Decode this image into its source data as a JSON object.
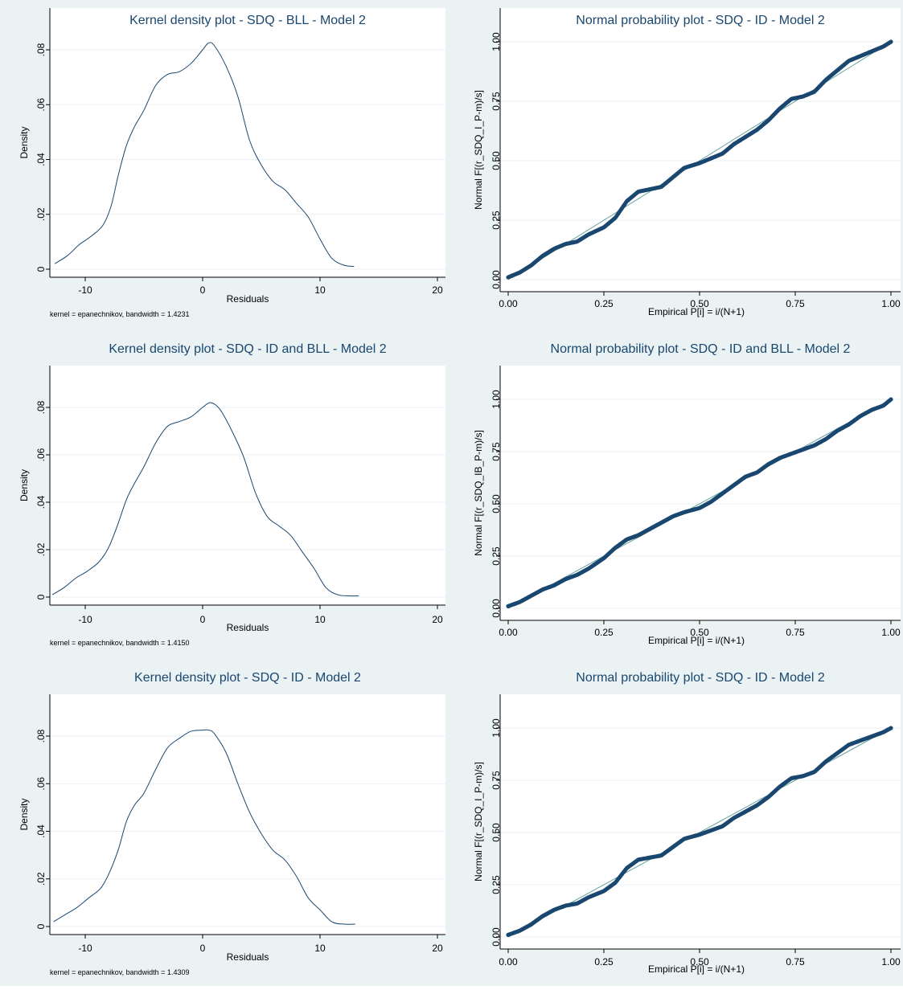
{
  "colors": {
    "background": "#eaf2f3",
    "plot_area": "#ffffff",
    "series": "#1a476f",
    "reference_line": "#66a0a0"
  },
  "chart_data": [
    {
      "type": "line",
      "subtype": "kernel-density",
      "title": "Kernel density plot - SDQ - BLL - Model 2",
      "xlabel": "Residuals",
      "ylabel": "Density",
      "note": "kernel = epanechnikov, bandwidth = 1.4231",
      "xlim": [
        -13,
        20
      ],
      "ylim": [
        0,
        0.085
      ],
      "xticks": [
        -10,
        0,
        10,
        20
      ],
      "xtick_labels": [
        "-10",
        "0",
        "10",
        "20"
      ],
      "yticks": [
        0,
        0.02,
        0.04,
        0.06,
        0.08
      ],
      "ytick_labels": [
        "0",
        ".02",
        ".04",
        ".06",
        ".08"
      ],
      "grid": true,
      "series": [
        {
          "x": [
            -12.6,
            -11.5,
            -10.5,
            -9.5,
            -8.5,
            -7.8,
            -7.2,
            -6.5,
            -5.8,
            -5,
            -4,
            -3,
            -2,
            -1,
            0,
            0.5,
            1,
            2,
            3,
            4,
            5,
            6,
            7,
            8,
            9,
            10,
            11,
            12,
            12.9
          ],
          "y": [
            0.002,
            0.005,
            0.009,
            0.012,
            0.016,
            0.023,
            0.034,
            0.045,
            0.052,
            0.058,
            0.067,
            0.071,
            0.072,
            0.075,
            0.08,
            0.0825,
            0.0815,
            0.074,
            0.063,
            0.047,
            0.038,
            0.032,
            0.029,
            0.024,
            0.019,
            0.011,
            0.004,
            0.0015,
            0.001
          ]
        }
      ]
    },
    {
      "type": "scatter",
      "subtype": "normal-probability",
      "title": "Normal probability plot - SDQ - ID - Model 2",
      "xlabel": "Empirical P[i] = i/(N+1)",
      "ylabel": "Normal F[(r_SDQ_I_P-m)/s]",
      "xlim": [
        0,
        1
      ],
      "ylim": [
        0,
        1
      ],
      "xticks": [
        0,
        0.25,
        0.5,
        0.75,
        1
      ],
      "xtick_labels": [
        "0.00",
        "0.25",
        "0.50",
        "0.75",
        "1.00"
      ],
      "yticks": [
        0,
        0.25,
        0.5,
        0.75,
        1
      ],
      "ytick_labels": [
        "0.00",
        "0.25",
        "0.50",
        "0.75",
        "1.00"
      ],
      "grid": true,
      "reference_line": true,
      "curve": {
        "x": [
          0,
          0.03,
          0.06,
          0.09,
          0.12,
          0.15,
          0.18,
          0.21,
          0.25,
          0.28,
          0.31,
          0.34,
          0.37,
          0.4,
          0.43,
          0.46,
          0.5,
          0.53,
          0.56,
          0.59,
          0.62,
          0.65,
          0.68,
          0.71,
          0.74,
          0.77,
          0.8,
          0.83,
          0.86,
          0.89,
          0.92,
          0.95,
          0.98,
          1.0
        ],
        "y": [
          0.01,
          0.03,
          0.06,
          0.1,
          0.13,
          0.15,
          0.16,
          0.19,
          0.22,
          0.26,
          0.33,
          0.37,
          0.38,
          0.39,
          0.43,
          0.47,
          0.49,
          0.51,
          0.53,
          0.57,
          0.6,
          0.63,
          0.67,
          0.72,
          0.76,
          0.77,
          0.79,
          0.84,
          0.88,
          0.92,
          0.94,
          0.96,
          0.98,
          1.0
        ]
      }
    },
    {
      "type": "line",
      "subtype": "kernel-density",
      "title": "Kernel density plot - SDQ - ID and BLL - Model 2",
      "xlabel": "Residuals",
      "ylabel": "Density",
      "note": "kernel = epanechnikov, bandwidth = 1.4150",
      "xlim": [
        -13,
        20
      ],
      "ylim": [
        0,
        0.085
      ],
      "xticks": [
        -10,
        0,
        10,
        20
      ],
      "xtick_labels": [
        "-10",
        "0",
        "10",
        "20"
      ],
      "yticks": [
        0,
        0.02,
        0.04,
        0.06,
        0.08
      ],
      "ytick_labels": [
        "0",
        ".02",
        ".04",
        ".06",
        ".08"
      ],
      "grid": true,
      "series": [
        {
          "x": [
            -12.8,
            -11.8,
            -10.8,
            -9.8,
            -8.8,
            -8,
            -7.2,
            -6.5,
            -5.8,
            -5,
            -4,
            -3,
            -2,
            -1,
            0,
            0.7,
            1.5,
            2.5,
            3.5,
            4.5,
            5.5,
            6.5,
            7.5,
            8.5,
            9.5,
            10.5,
            11.5,
            12.5,
            13.3
          ],
          "y": [
            0.001,
            0.004,
            0.008,
            0.011,
            0.015,
            0.021,
            0.031,
            0.041,
            0.048,
            0.055,
            0.065,
            0.072,
            0.074,
            0.076,
            0.08,
            0.082,
            0.079,
            0.07,
            0.059,
            0.044,
            0.034,
            0.03,
            0.026,
            0.019,
            0.012,
            0.004,
            0.001,
            0.0005,
            0.0005
          ]
        }
      ]
    },
    {
      "type": "scatter",
      "subtype": "normal-probability",
      "title": "Normal probability plot - SDQ - ID and BLL - Model 2",
      "xlabel": "Empirical P[i] = i/(N+1)",
      "ylabel": "Normal F[(r_SDQ_IB_P-m)/s]",
      "xlim": [
        0,
        1
      ],
      "ylim": [
        0,
        1
      ],
      "xticks": [
        0,
        0.25,
        0.5,
        0.75,
        1
      ],
      "xtick_labels": [
        "0.00",
        "0.25",
        "0.50",
        "0.75",
        "1.00"
      ],
      "yticks": [
        0,
        0.25,
        0.5,
        0.75,
        1
      ],
      "ytick_labels": [
        "0.00",
        "0.25",
        "0.50",
        "0.75",
        "1.00"
      ],
      "grid": true,
      "reference_line": true,
      "curve": {
        "x": [
          0,
          0.03,
          0.06,
          0.09,
          0.12,
          0.15,
          0.18,
          0.21,
          0.25,
          0.28,
          0.31,
          0.34,
          0.37,
          0.4,
          0.43,
          0.46,
          0.5,
          0.53,
          0.56,
          0.59,
          0.62,
          0.65,
          0.68,
          0.71,
          0.74,
          0.77,
          0.8,
          0.83,
          0.86,
          0.89,
          0.92,
          0.95,
          0.98,
          1.0
        ],
        "y": [
          0.01,
          0.03,
          0.06,
          0.09,
          0.11,
          0.14,
          0.16,
          0.19,
          0.24,
          0.29,
          0.33,
          0.35,
          0.38,
          0.41,
          0.44,
          0.46,
          0.48,
          0.51,
          0.55,
          0.59,
          0.63,
          0.65,
          0.69,
          0.72,
          0.74,
          0.76,
          0.78,
          0.81,
          0.85,
          0.88,
          0.92,
          0.95,
          0.97,
          1.0
        ]
      }
    },
    {
      "type": "line",
      "subtype": "kernel-density",
      "title": "Kernel density plot - SDQ - ID - Model 2",
      "xlabel": "Residuals",
      "ylabel": "Density",
      "note": "kernel = epanechnikov, bandwidth = 1.4309",
      "xlim": [
        -13,
        20
      ],
      "ylim": [
        0,
        0.085
      ],
      "xticks": [
        -10,
        0,
        10,
        20
      ],
      "xtick_labels": [
        "-10",
        "0",
        "10",
        "20"
      ],
      "yticks": [
        0,
        0.02,
        0.04,
        0.06,
        0.08
      ],
      "ytick_labels": [
        "0",
        ".02",
        ".04",
        ".06",
        ".08"
      ],
      "grid": true,
      "series": [
        {
          "x": [
            -12.7,
            -11.7,
            -10.7,
            -9.7,
            -8.7,
            -8,
            -7.2,
            -6.5,
            -5.8,
            -5,
            -4,
            -3,
            -2,
            -1,
            0,
            0.5,
            1,
            2,
            3,
            4,
            5,
            6,
            7,
            8,
            9,
            10,
            11,
            12,
            13
          ],
          "y": [
            0.002,
            0.005,
            0.008,
            0.012,
            0.016,
            0.022,
            0.032,
            0.044,
            0.051,
            0.056,
            0.066,
            0.075,
            0.079,
            0.082,
            0.0825,
            0.0825,
            0.081,
            0.073,
            0.06,
            0.048,
            0.039,
            0.032,
            0.028,
            0.021,
            0.012,
            0.007,
            0.002,
            0.001,
            0.001
          ]
        }
      ]
    },
    {
      "type": "scatter",
      "subtype": "normal-probability",
      "title": "Normal probability plot - SDQ - ID - Model 2",
      "xlabel": "Empirical P[i] = i/(N+1)",
      "ylabel": "Normal F[(r_SDQ_I_P-m)/s]",
      "xlim": [
        0,
        1
      ],
      "ylim": [
        0,
        1
      ],
      "xticks": [
        0,
        0.25,
        0.5,
        0.75,
        1
      ],
      "xtick_labels": [
        "0.00",
        "0.25",
        "0.50",
        "0.75",
        "1.00"
      ],
      "yticks": [
        0,
        0.25,
        0.5,
        0.75,
        1
      ],
      "ytick_labels": [
        "0.00",
        "0.25",
        "0.50",
        "0.75",
        "1.00"
      ],
      "grid": true,
      "reference_line": true,
      "curve": {
        "x": [
          0,
          0.03,
          0.06,
          0.09,
          0.12,
          0.15,
          0.18,
          0.21,
          0.25,
          0.28,
          0.31,
          0.34,
          0.37,
          0.4,
          0.43,
          0.46,
          0.5,
          0.53,
          0.56,
          0.59,
          0.62,
          0.65,
          0.68,
          0.71,
          0.74,
          0.77,
          0.8,
          0.83,
          0.86,
          0.89,
          0.92,
          0.95,
          0.98,
          1.0
        ],
        "y": [
          0.01,
          0.03,
          0.06,
          0.1,
          0.13,
          0.15,
          0.16,
          0.19,
          0.22,
          0.26,
          0.33,
          0.37,
          0.38,
          0.39,
          0.43,
          0.47,
          0.49,
          0.51,
          0.53,
          0.57,
          0.6,
          0.63,
          0.67,
          0.72,
          0.76,
          0.77,
          0.79,
          0.84,
          0.88,
          0.92,
          0.94,
          0.96,
          0.98,
          1.0
        ]
      }
    }
  ]
}
